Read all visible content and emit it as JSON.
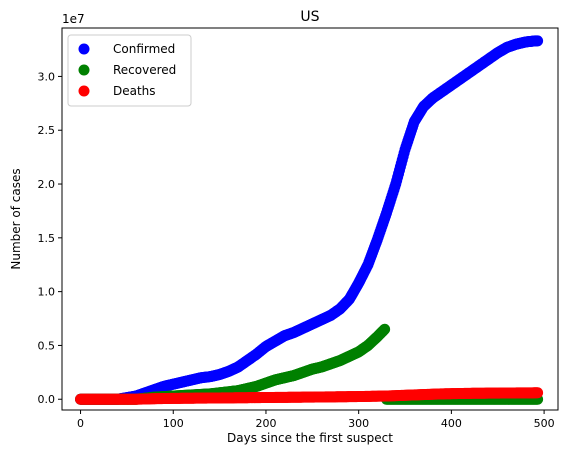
{
  "chart_data": {
    "type": "scatter",
    "title": "US",
    "xlabel": "Days since the first suspect",
    "ylabel": "Number of cases",
    "offset_label": "1e7",
    "xlim": [
      -20,
      515
    ],
    "ylim": [
      -1.0,
      34.5
    ],
    "y_unit_scale": 10000000,
    "x_ticks": [
      0,
      100,
      200,
      300,
      400,
      500
    ],
    "x_tick_labels": [
      "0",
      "100",
      "200",
      "300",
      "400",
      "500"
    ],
    "y_ticks": [
      0.0,
      0.5,
      1.0,
      1.5,
      2.0,
      2.5,
      3.0
    ],
    "y_tick_labels": [
      "0.0",
      "0.5",
      "1.0",
      "1.5",
      "2.0",
      "2.5",
      "3.0"
    ],
    "legend_position": "upper-left",
    "grid": false,
    "series": [
      {
        "name": "Confirmed",
        "color": "#0000ff",
        "points": [
          [
            0,
            0.0
          ],
          [
            40,
            0.0
          ],
          [
            60,
            0.03
          ],
          [
            70,
            0.06
          ],
          [
            80,
            0.09
          ],
          [
            90,
            0.12
          ],
          [
            100,
            0.14
          ],
          [
            110,
            0.16
          ],
          [
            120,
            0.18
          ],
          [
            130,
            0.2
          ],
          [
            140,
            0.21
          ],
          [
            150,
            0.23
          ],
          [
            160,
            0.26
          ],
          [
            170,
            0.3
          ],
          [
            180,
            0.36
          ],
          [
            190,
            0.42
          ],
          [
            200,
            0.49
          ],
          [
            210,
            0.54
          ],
          [
            220,
            0.59
          ],
          [
            230,
            0.62
          ],
          [
            240,
            0.66
          ],
          [
            250,
            0.7
          ],
          [
            260,
            0.74
          ],
          [
            270,
            0.78
          ],
          [
            280,
            0.84
          ],
          [
            290,
            0.93
          ],
          [
            300,
            1.08
          ],
          [
            310,
            1.25
          ],
          [
            320,
            1.48
          ],
          [
            330,
            1.73
          ],
          [
            340,
            2.0
          ],
          [
            350,
            2.32
          ],
          [
            360,
            2.58
          ],
          [
            370,
            2.72
          ],
          [
            380,
            2.8
          ],
          [
            390,
            2.86
          ],
          [
            400,
            2.92
          ],
          [
            410,
            2.98
          ],
          [
            420,
            3.04
          ],
          [
            430,
            3.1
          ],
          [
            440,
            3.16
          ],
          [
            450,
            3.22
          ],
          [
            460,
            3.27
          ],
          [
            470,
            3.3
          ],
          [
            480,
            3.32
          ],
          [
            490,
            3.33
          ],
          [
            493,
            3.33
          ]
        ]
      },
      {
        "name": "Recovered",
        "color": "#008000",
        "points": [
          [
            0,
            0.0
          ],
          [
            40,
            0.0
          ],
          [
            60,
            0.0
          ],
          [
            80,
            0.02
          ],
          [
            100,
            0.03
          ],
          [
            120,
            0.04
          ],
          [
            140,
            0.05
          ],
          [
            160,
            0.07
          ],
          [
            170,
            0.08
          ],
          [
            180,
            0.1
          ],
          [
            190,
            0.12
          ],
          [
            200,
            0.15
          ],
          [
            210,
            0.18
          ],
          [
            220,
            0.2
          ],
          [
            230,
            0.22
          ],
          [
            240,
            0.25
          ],
          [
            250,
            0.28
          ],
          [
            260,
            0.3
          ],
          [
            270,
            0.33
          ],
          [
            280,
            0.36
          ],
          [
            290,
            0.4
          ],
          [
            300,
            0.44
          ],
          [
            310,
            0.5
          ],
          [
            320,
            0.58
          ],
          [
            328,
            0.65
          ],
          [
            330,
            0.0
          ],
          [
            400,
            0.0
          ],
          [
            493,
            0.0
          ]
        ]
      },
      {
        "name": "Deaths",
        "color": "#ff0000",
        "points": [
          [
            0,
            0.0
          ],
          [
            60,
            0.0
          ],
          [
            80,
            0.005
          ],
          [
            100,
            0.008
          ],
          [
            150,
            0.012
          ],
          [
            200,
            0.016
          ],
          [
            250,
            0.02
          ],
          [
            300,
            0.025
          ],
          [
            330,
            0.03
          ],
          [
            360,
            0.04
          ],
          [
            390,
            0.05
          ],
          [
            420,
            0.055
          ],
          [
            460,
            0.058
          ],
          [
            493,
            0.06
          ]
        ]
      }
    ]
  }
}
